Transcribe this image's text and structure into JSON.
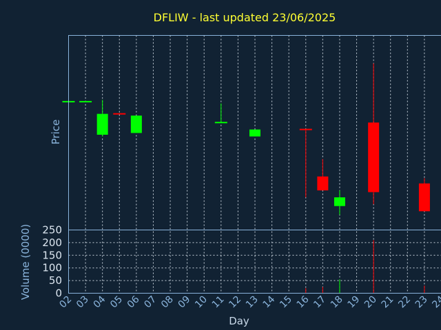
{
  "chart_data": {
    "type": "candlestick",
    "title": "DFLIW - last updated 23/06/2025",
    "price_panel": {
      "ylabel": "Price",
      "ylim": [
        0,
        100
      ],
      "candles": [
        {
          "day": "02",
          "open": 70,
          "close": 70,
          "high": 70,
          "low": 70,
          "direction": "up"
        },
        {
          "day": "03",
          "open": 70,
          "close": 70,
          "high": 70,
          "low": 70,
          "direction": "up"
        },
        {
          "day": "04",
          "open": 51,
          "close": 63,
          "high": 71,
          "low": 50,
          "direction": "up"
        },
        {
          "day": "05",
          "open": 63,
          "close": 63,
          "high": 63,
          "low": 63,
          "direction": "down"
        },
        {
          "day": "06",
          "open": 52,
          "close": 62,
          "high": 62,
          "low": 52,
          "direction": "up"
        },
        {
          "day": "11",
          "open": 58,
          "close": 58,
          "high": 69,
          "low": 58,
          "direction": "up"
        },
        {
          "day": "13",
          "open": 50,
          "close": 54,
          "high": 54,
          "low": 50,
          "direction": "up"
        },
        {
          "day": "16",
          "open": 54,
          "close": 54,
          "high": 54,
          "low": 15,
          "direction": "down"
        },
        {
          "day": "17",
          "open": 27,
          "close": 19,
          "high": 37,
          "low": 19,
          "direction": "down"
        },
        {
          "day": "18",
          "open": 10,
          "close": 15,
          "high": 19,
          "low": 5,
          "direction": "up"
        },
        {
          "day": "20",
          "open": 58,
          "close": 18,
          "high": 92,
          "low": 11,
          "direction": "down"
        },
        {
          "day": "23",
          "open": 23,
          "close": 7,
          "high": 26,
          "low": 7,
          "direction": "down"
        }
      ]
    },
    "volume_panel": {
      "ylabel": "Volume (0000)",
      "ylim": [
        0,
        250
      ],
      "yticks": [
        0,
        50,
        100,
        150,
        200,
        250
      ],
      "bars": [
        {
          "day": "16",
          "value": 20,
          "direction": "down"
        },
        {
          "day": "17",
          "value": 25,
          "direction": "down"
        },
        {
          "day": "18",
          "value": 55,
          "direction": "up"
        },
        {
          "day": "20",
          "value": 210,
          "direction": "down"
        },
        {
          "day": "23",
          "value": 30,
          "direction": "down"
        }
      ]
    },
    "xlabel": "Day",
    "x_categories": [
      "02",
      "03",
      "04",
      "05",
      "06",
      "07",
      "08",
      "09",
      "10",
      "11",
      "12",
      "13",
      "14",
      "15",
      "16",
      "17",
      "18",
      "19",
      "20",
      "21",
      "22",
      "23",
      "24"
    ],
    "grid": true,
    "colors": {
      "background": "#112233",
      "up": "#00ff00",
      "down": "#ff0000",
      "title": "#ffff33",
      "axis": "#8ab4dc",
      "grid": "#c8d2dc"
    }
  }
}
